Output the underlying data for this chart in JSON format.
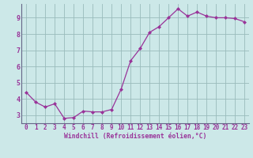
{
  "x": [
    0,
    1,
    2,
    3,
    4,
    5,
    6,
    7,
    8,
    9,
    10,
    11,
    12,
    13,
    14,
    15,
    16,
    17,
    18,
    19,
    20,
    21,
    22,
    23
  ],
  "y": [
    4.4,
    3.8,
    3.5,
    3.7,
    2.8,
    2.85,
    3.25,
    3.2,
    3.2,
    3.35,
    4.6,
    6.35,
    7.1,
    8.1,
    8.45,
    9.0,
    9.55,
    9.1,
    9.35,
    9.1,
    9.0,
    9.0,
    8.95,
    8.75
  ],
  "line_color": "#993399",
  "marker_color": "#993399",
  "bg_color": "#cce8e8",
  "grid_color": "#99bbbb",
  "xlabel": "Windchill (Refroidissement éolien,°C)",
  "xlabel_color": "#993399",
  "tick_color": "#993399",
  "ylim": [
    2.5,
    9.85
  ],
  "yticks": [
    3,
    4,
    5,
    6,
    7,
    8,
    9
  ],
  "xlim": [
    -0.5,
    23.5
  ],
  "xticks": [
    0,
    1,
    2,
    3,
    4,
    5,
    6,
    7,
    8,
    9,
    10,
    11,
    12,
    13,
    14,
    15,
    16,
    17,
    18,
    19,
    20,
    21,
    22,
    23
  ],
  "tick_fontsize": 5.5,
  "xlabel_fontsize": 5.8,
  "spine_color": "#666688"
}
